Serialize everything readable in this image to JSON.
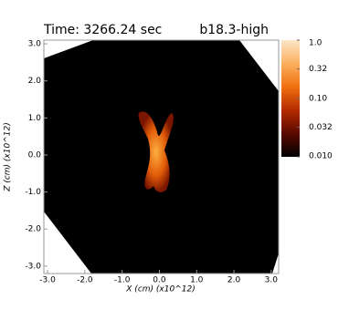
{
  "chart_data": {
    "type": "heatmap",
    "title": "Time: 3266.24 sec",
    "label": "b18.3-high",
    "x_label": "X (cm) (x10^12)",
    "y_label": "Z (cm) (x10^12)",
    "xlim": [
      -3.1,
      3.2
    ],
    "ylim": [
      -3.2,
      3.1
    ],
    "xticks": [
      {
        "value": -3,
        "label": "-3.0"
      },
      {
        "value": -2,
        "label": "-2.0"
      },
      {
        "value": -1,
        "label": "-1.0"
      },
      {
        "value": 0,
        "label": "0.0"
      },
      {
        "value": 1,
        "label": "1.0"
      },
      {
        "value": 2,
        "label": "2.0"
      },
      {
        "value": 3,
        "label": "3.0"
      }
    ],
    "yticks": [
      {
        "value": -3,
        "label": "-3.0"
      },
      {
        "value": -2,
        "label": "-2.0"
      },
      {
        "value": -1,
        "label": "-1.0"
      },
      {
        "value": 0,
        "label": "0.0"
      },
      {
        "value": 1,
        "label": "1.0"
      },
      {
        "value": 2,
        "label": "2.0"
      },
      {
        "value": 3,
        "label": "3.0"
      }
    ],
    "colorbar": {
      "log": true,
      "lim": [
        0.01,
        1
      ],
      "ticks": [
        {
          "value": 1,
          "label": "1.0"
        },
        0.32,
        {
          "value": 0.1,
          "label": "0.10"
        },
        0.032,
        {
          "value": 0.01,
          "label": "0.010"
        }
      ],
      "colors": [
        "#000000",
        "#5a0a00",
        "#b42a00",
        "#f07010",
        "#fbb060",
        "#fde6c8"
      ]
    }
  }
}
